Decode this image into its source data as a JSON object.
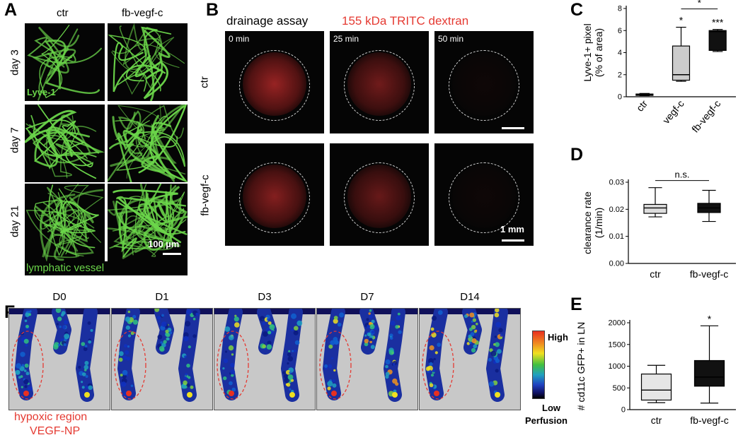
{
  "panels": {
    "A": {
      "label": "A",
      "columns": [
        "ctr",
        "fb-vegf-c"
      ],
      "rows": [
        "day 3",
        "day 7",
        "day 21"
      ],
      "stain_label": "Lyve-1",
      "scale_bar": "100 µm",
      "footer": "lymphatic vessel",
      "colors": {
        "vessel": "#6bd64a",
        "background": "#050505"
      }
    },
    "B": {
      "label": "B",
      "title_left": "drainage assay",
      "title_right": "155 kDa TRITC dextran",
      "times": [
        "0 min",
        "25 min",
        "50 min"
      ],
      "rows": [
        "ctr",
        "fb-vegf-c"
      ],
      "scale_bar": "1 mm",
      "colors": {
        "dextran": "#e53a32",
        "title_right": "#e53a32"
      }
    },
    "C": {
      "label": "C"
    },
    "D": {
      "label": "D"
    },
    "E": {
      "label": "E"
    },
    "F": {
      "label": "F",
      "days": [
        "D0",
        "D1",
        "D3",
        "D7",
        "D14"
      ],
      "colorbar_high": "High",
      "colorbar_low": "Low",
      "colorbar_title": "Perfusion",
      "caption_line1": "hypoxic region",
      "caption_line2": "VEGF-NP",
      "colors": {
        "caption": "#e53a32",
        "frame": "#c8c8c8"
      }
    }
  },
  "chart_data": [
    {
      "id": "C",
      "type": "box",
      "ylabel_line1": "Lyve-1+ pixel",
      "ylabel_line2": "(% of area)",
      "ylim": [
        0,
        8
      ],
      "yticks": [
        "0",
        "2",
        "4",
        "6",
        "8"
      ],
      "categories": [
        "ctr",
        "vegf-c",
        "fb-vegf-c"
      ],
      "boxes": [
        {
          "min": 0.1,
          "q1": 0.15,
          "median": 0.2,
          "q3": 0.25,
          "max": 0.3,
          "fill": "#777777"
        },
        {
          "min": 1.4,
          "q1": 1.5,
          "median": 2.0,
          "q3": 4.6,
          "max": 6.3,
          "fill": "#cccccc"
        },
        {
          "min": 4.1,
          "q1": 4.2,
          "median": 5.9,
          "q3": 6.0,
          "max": 6.1,
          "fill": "#111111"
        }
      ],
      "annotations": [
        {
          "text": "*",
          "category": 1
        },
        {
          "text": "***",
          "category": 2
        }
      ],
      "bracket": {
        "from": 1,
        "to": 2,
        "text": "*"
      }
    },
    {
      "id": "D",
      "type": "box",
      "ylabel_line1": "clearance rate",
      "ylabel_line2": "(1/min)",
      "ylim": [
        0,
        0.03
      ],
      "yticks": [
        "0.00",
        "0.01",
        "0.02",
        "0.03"
      ],
      "categories": [
        "ctr",
        "fb-vegf-c"
      ],
      "boxes": [
        {
          "min": 0.0172,
          "q1": 0.0185,
          "median": 0.0205,
          "q3": 0.0218,
          "max": 0.028,
          "fill": "#dddddd"
        },
        {
          "min": 0.0155,
          "q1": 0.0188,
          "median": 0.0205,
          "q3": 0.0222,
          "max": 0.027,
          "fill": "#111111"
        }
      ],
      "annotations": [],
      "bracket": {
        "from": 0,
        "to": 1,
        "text": "n.s."
      }
    },
    {
      "id": "E",
      "type": "box",
      "ylabel_line1": "# cd11c GFP+ in LN",
      "ylabel_line2": "",
      "ylim": [
        0,
        2000
      ],
      "yticks": [
        "0",
        "500",
        "1000",
        "1500",
        "2000"
      ],
      "categories": [
        "ctr",
        "fb-vegf-c"
      ],
      "boxes": [
        {
          "min": 160,
          "q1": 220,
          "median": 450,
          "q3": 820,
          "max": 1020,
          "fill": "#e6e6e6"
        },
        {
          "min": 150,
          "q1": 540,
          "median": 750,
          "q3": 1130,
          "max": 1930,
          "fill": "#111111"
        }
      ],
      "annotations": [
        {
          "text": "*",
          "category": 1
        }
      ],
      "bracket": null
    }
  ]
}
